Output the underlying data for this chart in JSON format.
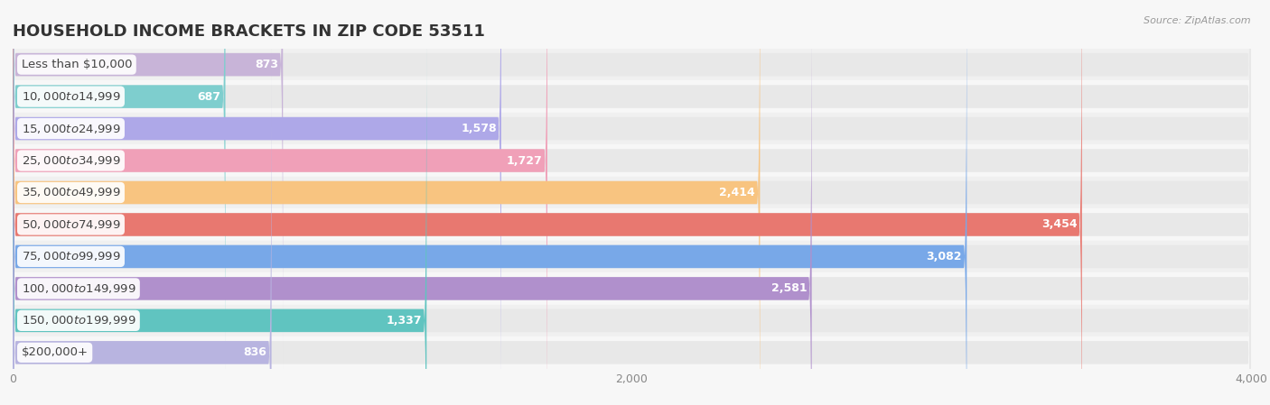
{
  "title": "HOUSEHOLD INCOME BRACKETS IN ZIP CODE 53511",
  "source": "Source: ZipAtlas.com",
  "categories": [
    "Less than $10,000",
    "$10,000 to $14,999",
    "$15,000 to $24,999",
    "$25,000 to $34,999",
    "$35,000 to $49,999",
    "$50,000 to $74,999",
    "$75,000 to $99,999",
    "$100,000 to $149,999",
    "$150,000 to $199,999",
    "$200,000+"
  ],
  "values": [
    873,
    687,
    1578,
    1727,
    2414,
    3454,
    3082,
    2581,
    1337,
    836
  ],
  "bar_colors": [
    "#c8b4d8",
    "#7ecece",
    "#aea8e8",
    "#f0a0b8",
    "#f8c480",
    "#e87870",
    "#78a8e8",
    "#b090cc",
    "#60c4c0",
    "#b8b4e0"
  ],
  "bar_bg_color": "#e8e8e8",
  "xlim": [
    0,
    4000
  ],
  "xticks": [
    0,
    2000,
    4000
  ],
  "background_color": "#f7f7f7",
  "title_color": "#333333",
  "source_color": "#999999",
  "label_color": "#444444",
  "value_color_inside": "#ffffff",
  "value_color_outside": "#555555",
  "title_fontsize": 13,
  "label_fontsize": 9.5,
  "value_fontsize": 9,
  "bar_height": 0.72,
  "bar_gap": 0.28
}
